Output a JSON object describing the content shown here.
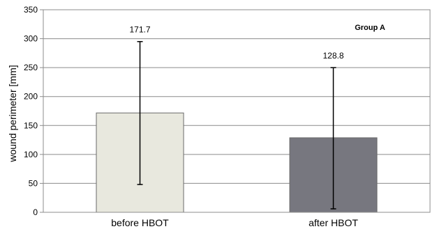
{
  "chart_data": {
    "type": "bar",
    "title": "",
    "annotation": "Group A",
    "xlabel": "",
    "ylabel": "wound perimeter [mm]",
    "ylim": [
      0,
      350
    ],
    "yticks": [
      0,
      50,
      100,
      150,
      200,
      250,
      300,
      350
    ],
    "grid": true,
    "categories": [
      "before HBOT",
      "after HBOT"
    ],
    "values": [
      171.7,
      128.8
    ],
    "data_labels": [
      "171.7",
      "128.8"
    ],
    "error_bars": [
      {
        "low": 48,
        "high": 295
      },
      {
        "low": 6,
        "high": 250
      }
    ],
    "bar_colors": [
      "#e8e8de",
      "#77777f"
    ]
  }
}
